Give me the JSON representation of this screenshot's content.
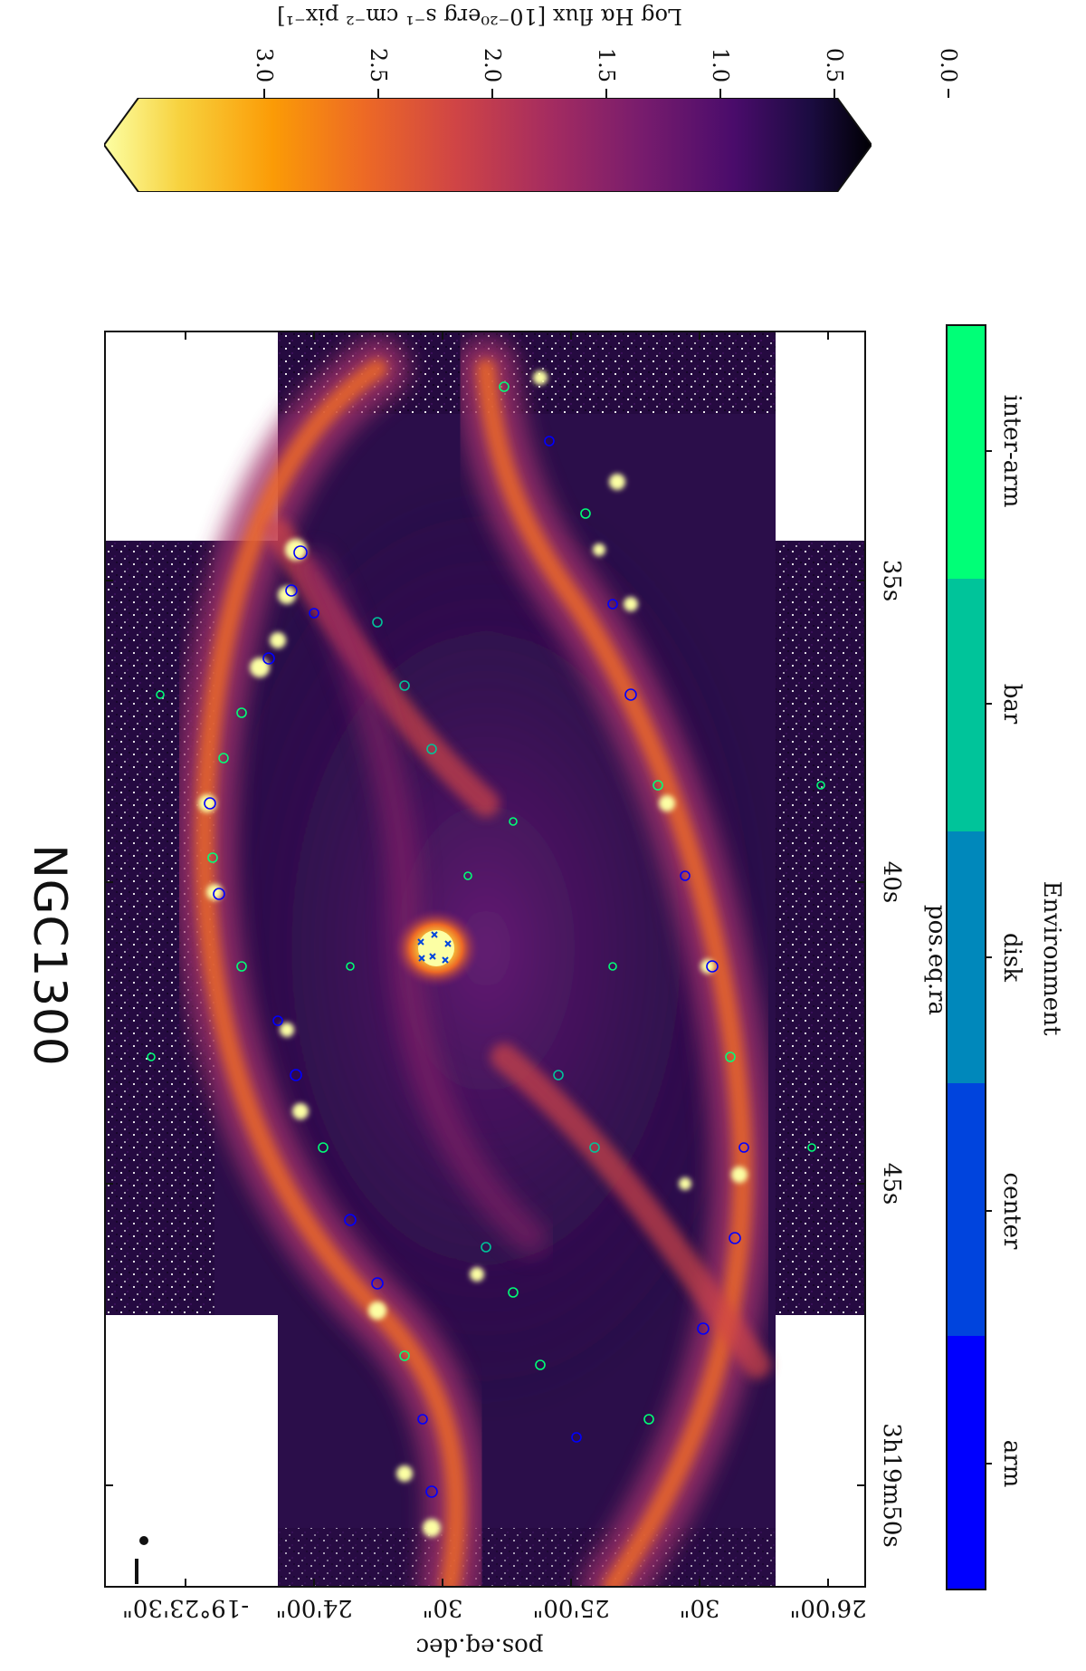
{
  "title": "NGC1300",
  "axes": {
    "x_label": "pos.eq.ra",
    "y_label": "pos.eq.dec",
    "ra_ticks": [
      "3h19m50s",
      "45s",
      "40s",
      "35s"
    ],
    "dec_ticks": [
      "-19°23'30\"",
      "24'00\"",
      "30\"",
      "25'00\"",
      "30\"",
      "26'00\""
    ]
  },
  "flux_colorbar": {
    "label": "Log Hα flux [10⁻²⁰erg s⁻¹ cm⁻² pix⁻¹]",
    "ticks": [
      "3.0",
      "2.5",
      "2.0",
      "1.5",
      "1.0",
      "0.5",
      "0.0"
    ],
    "colormap": "inferno",
    "range": [
      0.0,
      3.0
    ],
    "colors": [
      "#000004",
      "#1b0c41",
      "#4a0c6b",
      "#781c6d",
      "#a52c60",
      "#cf4446",
      "#ed6925",
      "#fb9b06",
      "#f7d13d",
      "#fcffa4"
    ]
  },
  "environment_colorbar": {
    "label": "Environment",
    "categories": [
      {
        "name": "arm",
        "color": "#0000ff"
      },
      {
        "name": "center",
        "color": "#0044dd"
      },
      {
        "name": "disk",
        "color": "#0088bb"
      },
      {
        "name": "bar",
        "color": "#00c49a"
      },
      {
        "name": "inter-arm",
        "color": "#00ff77"
      }
    ]
  },
  "image": {
    "description_colors": {
      "background": "#2a0d48",
      "glow": "#f7a13a",
      "core": "#fcffa4",
      "blank": "#ffffff"
    }
  }
}
